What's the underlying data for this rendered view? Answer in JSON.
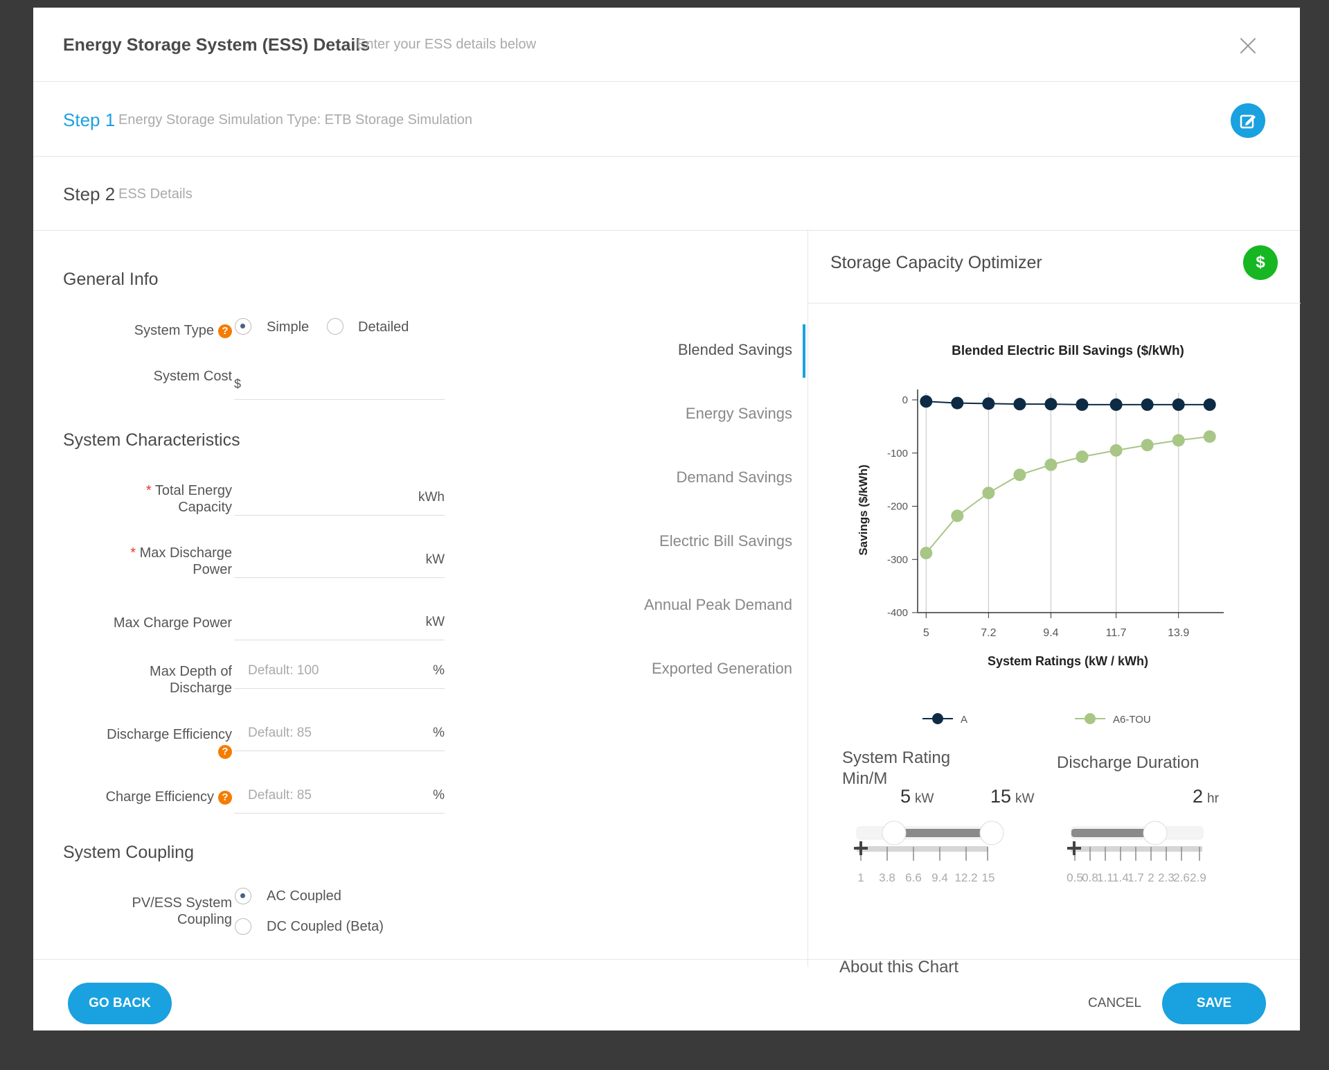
{
  "modal": {
    "title": "Energy Storage System (ESS) Details",
    "subtitle": "Enter your ESS details below",
    "close_icon": "close-icon"
  },
  "steps": [
    {
      "label": "Step 1",
      "desc": "Energy Storage Simulation Type: ETB Storage Simulation"
    },
    {
      "label": "Step 2",
      "desc": "ESS Details"
    }
  ],
  "general": {
    "heading": "General Info",
    "system_type_label": "System Type",
    "system_type_options": [
      "Simple",
      "Detailed"
    ],
    "system_type_selected": "Simple",
    "system_cost_label": "System Cost",
    "system_cost_prefix": "$"
  },
  "characteristics": {
    "heading": "System Characteristics",
    "fields": [
      {
        "label1": "Total Energy",
        "label2": "Capacity",
        "required": true,
        "placeholder": "",
        "unit": "kWh"
      },
      {
        "label1": "Max Discharge",
        "label2": "Power",
        "required": true,
        "placeholder": "",
        "unit": "kW"
      },
      {
        "label1": "Max Charge Power",
        "label2": "",
        "required": false,
        "placeholder": "",
        "unit": "kW"
      },
      {
        "label1": "Max Depth of",
        "label2": "Discharge",
        "required": false,
        "placeholder": "Default: 100",
        "unit": "%"
      },
      {
        "label1": "Discharge Efficiency",
        "label2": "",
        "required": false,
        "placeholder": "Default: 85",
        "unit": "%"
      },
      {
        "label1": "Charge Efficiency",
        "label2": "",
        "required": false,
        "placeholder": "Default: 85",
        "unit": "%"
      }
    ],
    "required_mark": "*",
    "help_glyph": "?"
  },
  "coupling": {
    "heading": "System Coupling",
    "label1": "PV/ESS System",
    "label2": "Coupling",
    "options": [
      "AC Coupled",
      "DC Coupled (Beta)"
    ],
    "selected": "AC Coupled"
  },
  "tabs": [
    "Blended Savings",
    "Energy Savings",
    "Demand Savings",
    "Electric Bill Savings",
    "Annual Peak Demand",
    "Exported Generation"
  ],
  "active_tab": "Blended Savings",
  "optimizer": {
    "title": "Storage Capacity Optimizer",
    "dollar_icon": "$",
    "cut_text": "About this Chart"
  },
  "chart_data": {
    "type": "line",
    "title": "Blended Electric Bill Savings ($/kWh)",
    "xlabel": "System Ratings (kW / kWh)",
    "ylabel": "Savings ($/kWh)",
    "x": [
      5,
      6.1,
      7.2,
      8.3,
      9.4,
      10.5,
      11.7,
      12.8,
      13.9,
      15
    ],
    "x_tick_labels": [
      "5",
      "7.2",
      "9.4",
      "11.7",
      "13.9"
    ],
    "x_ticks": [
      5,
      7.2,
      9.4,
      11.7,
      13.9
    ],
    "y_ticks": [
      0,
      -100,
      -200,
      -300,
      -400
    ],
    "ylim": [
      -400,
      0
    ],
    "xlim": [
      4.7,
      15.3
    ],
    "series": [
      {
        "name": "A",
        "color": "#0d2b45",
        "values": [
          -3,
          -6,
          -7,
          -8,
          -8,
          -9,
          -9,
          -9,
          -9,
          -9
        ]
      },
      {
        "name": "A6-TOU",
        "color": "#a8c686",
        "values": [
          -288,
          -218,
          -175,
          -141,
          -122,
          -107,
          -95,
          -85,
          -76,
          -69
        ]
      }
    ],
    "legend_position": "bottom",
    "grid": "vertical"
  },
  "system_rating": {
    "heading": "System Rating",
    "heading2": "Min/M",
    "min": "5",
    "max": "15",
    "unit": "kW",
    "ticks": [
      "1",
      "3.8",
      "6.6",
      "9.4",
      "12.2",
      "15"
    ]
  },
  "discharge": {
    "heading": "Discharge Duration",
    "value": "2",
    "unit": "hr",
    "ticks": [
      "0.5",
      "0.8",
      "1.1",
      "1.4",
      "1.7",
      "2",
      "2.3",
      "2.6",
      "2.9"
    ]
  },
  "footer": {
    "back": "GO BACK",
    "cancel": "CANCEL",
    "save": "SAVE"
  }
}
